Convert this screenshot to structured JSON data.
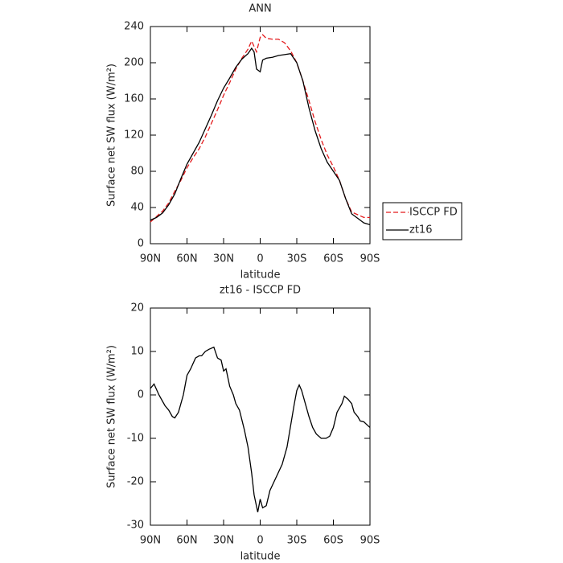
{
  "chart_data": [
    {
      "type": "line",
      "title": "ANN",
      "xlabel": "latitude",
      "ylabel": "Surface net SW flux (W/m²)",
      "x": [
        90,
        85,
        80,
        75,
        70,
        65,
        60,
        55,
        50,
        45,
        40,
        35,
        30,
        25,
        20,
        15,
        10,
        7,
        5,
        3,
        0,
        -2,
        -5,
        -10,
        -15,
        -20,
        -25,
        -30,
        -35,
        -40,
        -45,
        -50,
        -55,
        -60,
        -65,
        -70,
        -75,
        -80,
        -85,
        -90
      ],
      "series": [
        {
          "name": "ISCCP FD",
          "color": "#e31a1c",
          "dash": true,
          "values": [
            24,
            30,
            36,
            45,
            58,
            70,
            84,
            95,
            105,
            118,
            133,
            148,
            164,
            178,
            193,
            205,
            215,
            224,
            218,
            212,
            228,
            231,
            227,
            226,
            226,
            222,
            213,
            200,
            180,
            158,
            135,
            115,
            98,
            85,
            70,
            50,
            35,
            32,
            29,
            29
          ]
        },
        {
          "name": "zt16",
          "color": "#000000",
          "dash": false,
          "values": [
            26,
            29,
            34,
            43,
            55,
            72,
            88,
            100,
            112,
            127,
            142,
            158,
            172,
            183,
            195,
            204,
            210,
            216,
            212,
            193,
            190,
            203,
            205,
            206,
            208,
            209,
            210,
            200,
            180,
            150,
            125,
            105,
            90,
            80,
            70,
            50,
            33,
            28,
            23,
            21
          ]
        }
      ],
      "xlim": [
        90,
        -90
      ],
      "xticks": [
        {
          "value": 90,
          "label": "90N"
        },
        {
          "value": 60,
          "label": "60N"
        },
        {
          "value": 30,
          "label": "30N"
        },
        0,
        {
          "value": -30,
          "label": "30S"
        },
        {
          "value": -60,
          "label": "60S"
        },
        {
          "value": -90,
          "label": "90S"
        }
      ],
      "ylim": [
        0,
        240
      ],
      "yticks": [
        0,
        40,
        80,
        120,
        160,
        200,
        240
      ],
      "legend": "right"
    },
    {
      "type": "line",
      "title": "zt16 - ISCCP FD",
      "xlabel": "latitude",
      "ylabel": "Surface net SW flux (W/m²)",
      "x": [
        90,
        87,
        83,
        78,
        75,
        72,
        70,
        67,
        63,
        60,
        57,
        53,
        50,
        48,
        45,
        42,
        38,
        35,
        32,
        30,
        28,
        25,
        22,
        20,
        17,
        13,
        10,
        7,
        5,
        2,
        0,
        -2,
        -5,
        -8,
        -13,
        -18,
        -22,
        -25,
        -28,
        -30,
        -32,
        -34,
        -37,
        -40,
        -43,
        -46,
        -50,
        -54,
        -57,
        -60,
        -63,
        -67,
        -69,
        -72,
        -75,
        -77,
        -80,
        -82,
        -85,
        -88,
        -90
      ],
      "values": [
        1.5,
        2.5,
        0,
        -2.5,
        -3.5,
        -5,
        -5.3,
        -4,
        0,
        4.5,
        6,
        8.5,
        9,
        9,
        10,
        10.5,
        11,
        8.5,
        8,
        5.5,
        6,
        2,
        0,
        -2,
        -3.5,
        -8,
        -12,
        -18,
        -23,
        -27,
        -24,
        -26,
        -25.5,
        -22,
        -19,
        -16,
        -12,
        -7,
        -2,
        1,
        2.3,
        1,
        -2,
        -5,
        -7.5,
        -9,
        -10,
        -10,
        -9.5,
        -7.5,
        -4,
        -2,
        -0.3,
        -1,
        -2,
        -4,
        -5,
        -6,
        -6.2,
        -7,
        -7.5
      ],
      "color": "#000000",
      "xlim": [
        90,
        -90
      ],
      "xticks": [
        {
          "value": 90,
          "label": "90N"
        },
        {
          "value": 60,
          "label": "60N"
        },
        {
          "value": 30,
          "label": "30N"
        },
        0,
        {
          "value": -30,
          "label": "30S"
        },
        {
          "value": -60,
          "label": "60S"
        },
        {
          "value": -90,
          "label": "90S"
        }
      ],
      "ylim": [
        -30,
        20
      ],
      "yticks": [
        -30,
        -20,
        -10,
        0,
        10,
        20
      ]
    }
  ]
}
